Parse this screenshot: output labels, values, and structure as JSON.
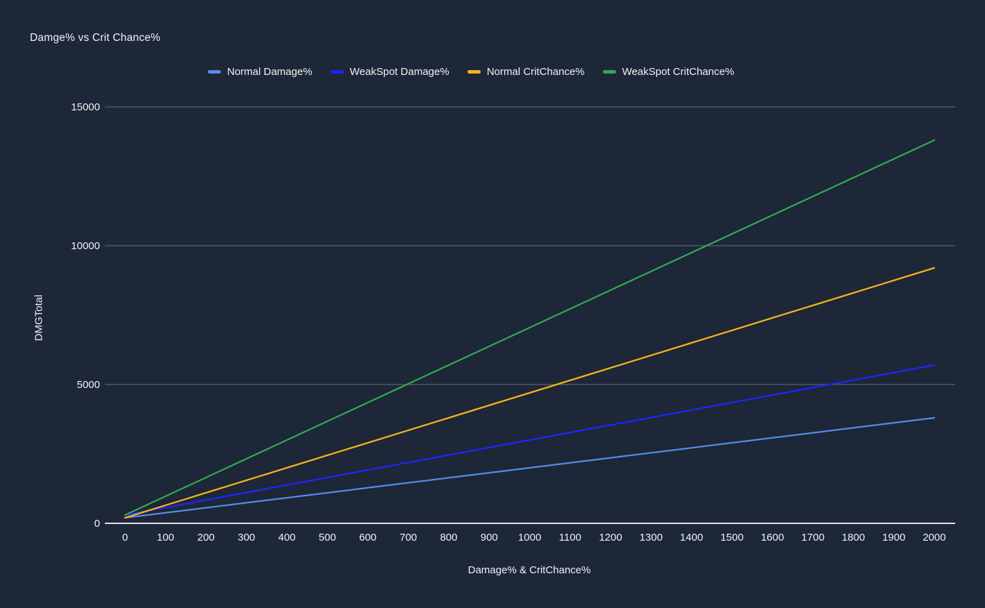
{
  "chart": {
    "title": "Damge% vs Crit Chance%",
    "x_axis_title": "Damage% & CritChance%",
    "y_axis_title": "DMGTotal",
    "colors": {
      "background": "#1d2737",
      "text": "#f1f3f4",
      "gridline": "rgba(230,235,240,0.38)",
      "axis_line": "#e3e7ec"
    }
  },
  "legend": {
    "position": "top",
    "items": [
      {
        "label": "Normal Damage%",
        "color": "#548ce8"
      },
      {
        "label": "WeakSpot Damage%",
        "color": "#1c25ff"
      },
      {
        "label": "Normal CritChance%",
        "color": "#f4b41a"
      },
      {
        "label": "WeakSpot CritChance%",
        "color": "#34a853"
      }
    ]
  },
  "chart_data": {
    "type": "line",
    "title": "Damge% vs Crit Chance%",
    "xlabel": "Damage% & CritChance%",
    "ylabel": "DMGTotal",
    "xlim": [
      0,
      2000
    ],
    "ylim": [
      0,
      15000
    ],
    "grid": "horizontal",
    "legend_position": "top",
    "x_ticks": [
      0,
      100,
      200,
      300,
      400,
      500,
      600,
      700,
      800,
      900,
      1000,
      1100,
      1200,
      1300,
      1400,
      1500,
      1600,
      1700,
      1800,
      1900,
      2000
    ],
    "y_ticks": [
      0,
      5000,
      10000,
      15000
    ],
    "x": [
      0,
      200,
      400,
      600,
      800,
      1000,
      1200,
      1400,
      1600,
      1800,
      2000
    ],
    "series": [
      {
        "name": "Normal Damage%",
        "color": "#548ce8",
        "values": [
          200,
          560,
          920,
          1280,
          1640,
          2000,
          2360,
          2720,
          3080,
          3440,
          3800
        ]
      },
      {
        "name": "WeakSpot Damage%",
        "color": "#1c25ff",
        "values": [
          300,
          840,
          1380,
          1920,
          2460,
          3000,
          3540,
          4080,
          4620,
          5160,
          5700
        ]
      },
      {
        "name": "Normal CritChance%",
        "color": "#f4b41a",
        "values": [
          200,
          1100,
          2000,
          2900,
          3800,
          4700,
          5600,
          6500,
          7400,
          8300,
          9200
        ]
      },
      {
        "name": "WeakSpot CritChance%",
        "color": "#34a853",
        "values": [
          300,
          1650,
          3000,
          4350,
          5700,
          7050,
          8400,
          9750,
          11100,
          12450,
          13800
        ]
      }
    ]
  }
}
